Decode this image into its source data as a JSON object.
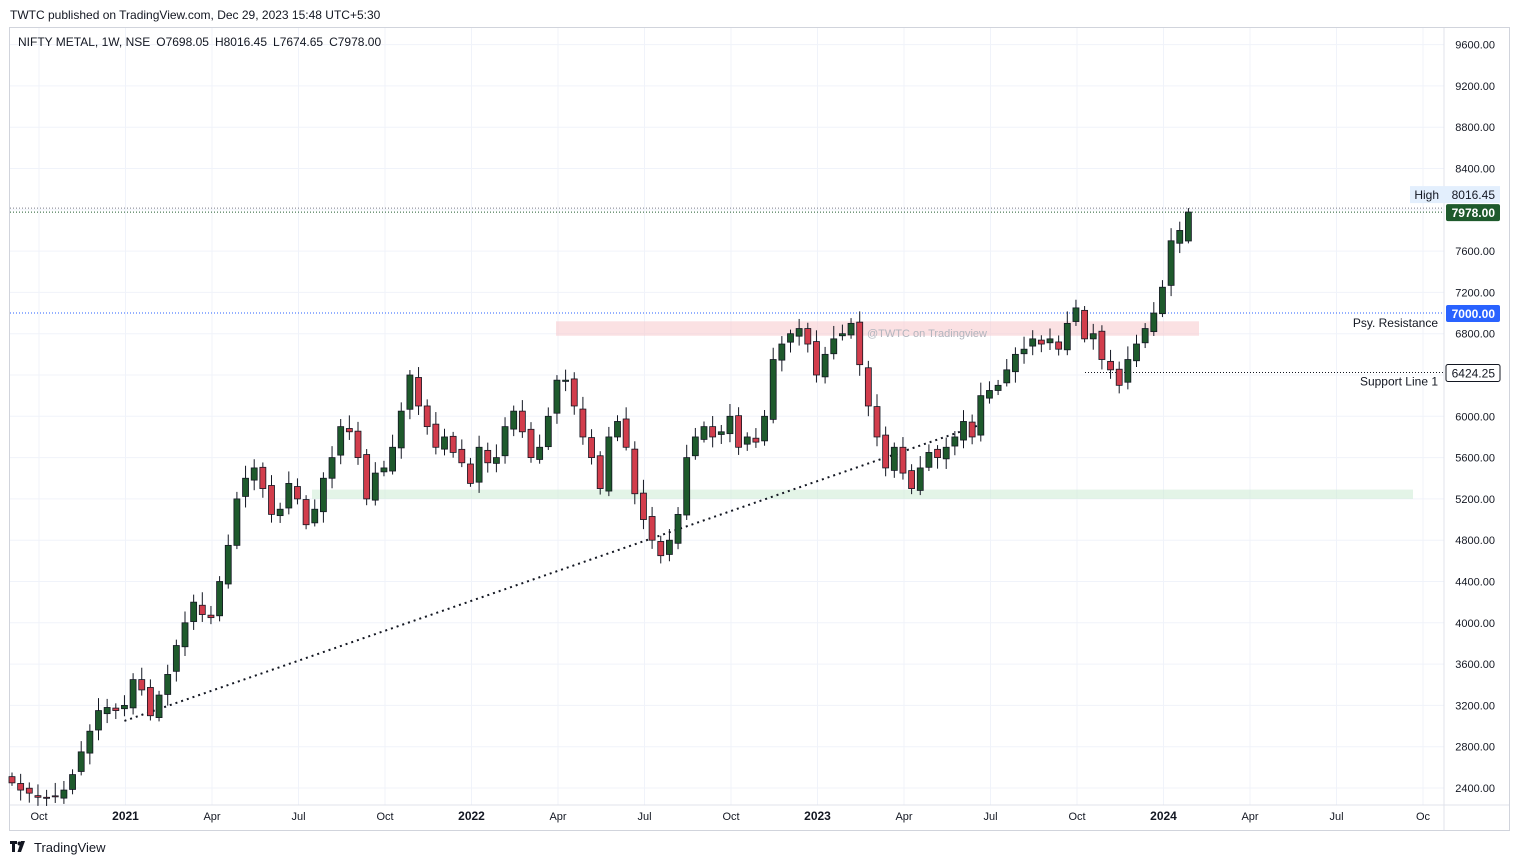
{
  "header": {
    "published": "TWTC published on TradingView.com, Dec 29, 2023 15:48 UTC+5:30"
  },
  "legend": {
    "symbol": "NIFTY METAL, 1W, NSE",
    "open": "O7698.05",
    "high": "H8016.45",
    "low": "L7674.65",
    "close": "C7978.00"
  },
  "footer": {
    "brand": "TradingView"
  },
  "colors": {
    "up": "#1e5a2c",
    "down": "#d23d4c",
    "last_tag": "#1e5a2c",
    "psy_tag": "#2962ff",
    "support_tag": "#ffffff",
    "grid": "#f0f3fa"
  },
  "chart_data": {
    "type": "candlestick",
    "title": "NIFTY METAL, 1W, NSE",
    "ylim": [
      2200,
      9800
    ],
    "y_ticks": [
      "2400.00",
      "2800.00",
      "3200.00",
      "3600.00",
      "4000.00",
      "4400.00",
      "4800.00",
      "5200.00",
      "5600.00",
      "6000.00",
      "6400.00",
      "6800.00",
      "7200.00",
      "7600.00",
      "8000.00",
      "8400.00",
      "8800.00",
      "9200.00",
      "9600.00"
    ],
    "x_labels": [
      {
        "label": "Oct",
        "week": 0,
        "bold": false
      },
      {
        "label": "2021",
        "week": 10,
        "bold": true
      },
      {
        "label": "Apr",
        "week": 20,
        "bold": false
      },
      {
        "label": "Jul",
        "week": 30,
        "bold": false
      },
      {
        "label": "Oct",
        "week": 40,
        "bold": false
      },
      {
        "label": "2022",
        "week": 50,
        "bold": true
      },
      {
        "label": "Apr",
        "week": 60,
        "bold": false
      },
      {
        "label": "Jul",
        "week": 70,
        "bold": false
      },
      {
        "label": "Oct",
        "week": 80,
        "bold": false
      },
      {
        "label": "2023",
        "week": 90,
        "bold": true
      },
      {
        "label": "Apr",
        "week": 100,
        "bold": false
      },
      {
        "label": "Jul",
        "week": 110,
        "bold": false
      },
      {
        "label": "Oct",
        "week": 120,
        "bold": false
      },
      {
        "label": "2024",
        "week": 130,
        "bold": true
      },
      {
        "label": "Apr",
        "week": 140,
        "bold": false
      },
      {
        "label": "Jul",
        "week": 150,
        "bold": false
      },
      {
        "label": "Oc",
        "week": 160,
        "bold": false
      }
    ],
    "closes": [
      2450,
      2380,
      2350,
      2310,
      2300,
      2320,
      2380,
      2530,
      2750,
      2950,
      3150,
      3180,
      3150,
      3200,
      3450,
      3350,
      3100,
      3300,
      3500,
      3780,
      4000,
      4200,
      4080,
      4050,
      4400,
      4750,
      5200,
      5400,
      5500,
      5300,
      5050,
      5100,
      5350,
      5200,
      4950,
      5100,
      5400,
      5600,
      5900,
      5850,
      5600,
      5200,
      5450,
      5500,
      5700,
      6050,
      6400,
      6100,
      5900,
      5700,
      5800,
      5650,
      5550,
      5350,
      5700,
      5550,
      5600,
      5900,
      6050,
      5850,
      5600,
      5700,
      6000,
      6350,
      6350,
      6100,
      5800,
      5600,
      5300,
      5800,
      5950,
      5700,
      5250,
      5000,
      4800,
      4650,
      4800,
      5050,
      5600,
      5800,
      5900,
      5800,
      5850,
      6000,
      5700,
      5800,
      5750,
      6000,
      6550,
      6700,
      6800,
      6850,
      6700,
      6400,
      6600,
      6750,
      6800,
      6900,
      6500,
      6100,
      5800,
      5500,
      5700,
      5450,
      5300,
      5500,
      5650,
      5600,
      5700,
      5800,
      5950,
      5800,
      6200,
      6250,
      6300,
      6450,
      6600,
      6650,
      6750,
      6700,
      6750,
      6650,
      6900,
      7050,
      6750,
      6800,
      6550,
      6450,
      6300,
      6550,
      6700,
      6850,
      7000,
      7250,
      7700,
      7800,
      7978
    ],
    "annotations": {
      "high_label": "High",
      "high_value": "8016.45",
      "last_value": "7978.00",
      "psy_value": "7000.00",
      "psy_label": "Psy. Resistance",
      "support_value": "6424.25",
      "support_label": "Support Line 1",
      "watermark": "@TWTC on Tradingview",
      "high_price": 8016.45,
      "last_price": 7978,
      "psy_price": 7000,
      "support_price": 6424.25,
      "resistance_zone": [
        6780,
        6920
      ],
      "support_zone": [
        5200,
        5290
      ],
      "trendline": [
        [
          13,
          3050
        ],
        [
          112,
          5920
        ]
      ]
    }
  }
}
